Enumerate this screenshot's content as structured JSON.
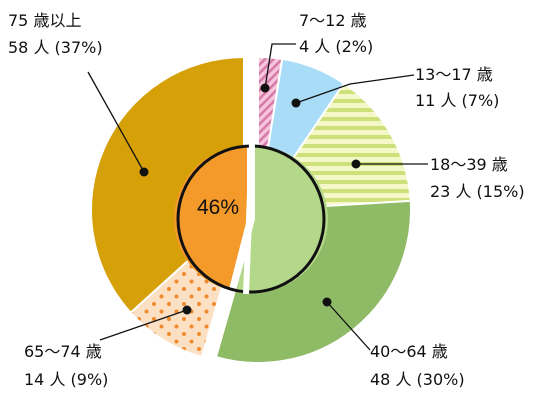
{
  "chart_data": {
    "type": "pie",
    "variant": "exploded donut with inner highlight",
    "legend": "none",
    "slices": [
      {
        "key": "s7_12",
        "label": "7〜12 歳",
        "count_text": "4 人 (2%)",
        "count": 4,
        "percent": 2,
        "color": "#f6c4dc",
        "pattern": "diagonal-stripes",
        "pattern_color": "#d57aa6"
      },
      {
        "key": "s13_17",
        "label": "13〜17 歳",
        "count_text": "11 人 (7%)",
        "count": 11,
        "percent": 7,
        "color": "#a9dcf6",
        "pattern": "none"
      },
      {
        "key": "s18_39",
        "label": "18〜39 歳",
        "count_text": "23 人 (15%)",
        "count": 23,
        "percent": 15,
        "color": "#f4f8c8",
        "pattern": "horizontal-stripes",
        "pattern_color": "#cde07a"
      },
      {
        "key": "s40_64",
        "label": "40〜64 歳",
        "count_text": "48 人 (30%)",
        "count": 48,
        "percent": 30,
        "color": "#8fba66",
        "pattern": "none"
      },
      {
        "key": "s65_74",
        "label": "65〜74 歳",
        "count_text": "14 人 (9%)",
        "count": 14,
        "percent": 9,
        "color": "#fce0c4",
        "pattern": "dots",
        "pattern_color": "#f08a2c"
      },
      {
        "key": "s75",
        "label": "75 歳以上",
        "count_text": "58 人 (37%)",
        "count": 58,
        "percent": 37,
        "color": "#d6a008",
        "pattern": "none"
      }
    ],
    "inner_circle": {
      "left_label": "46%",
      "left_value": 46,
      "left_color": "#f39a2a",
      "right_color": "#b3d88a",
      "outline_color": "#111111"
    }
  }
}
